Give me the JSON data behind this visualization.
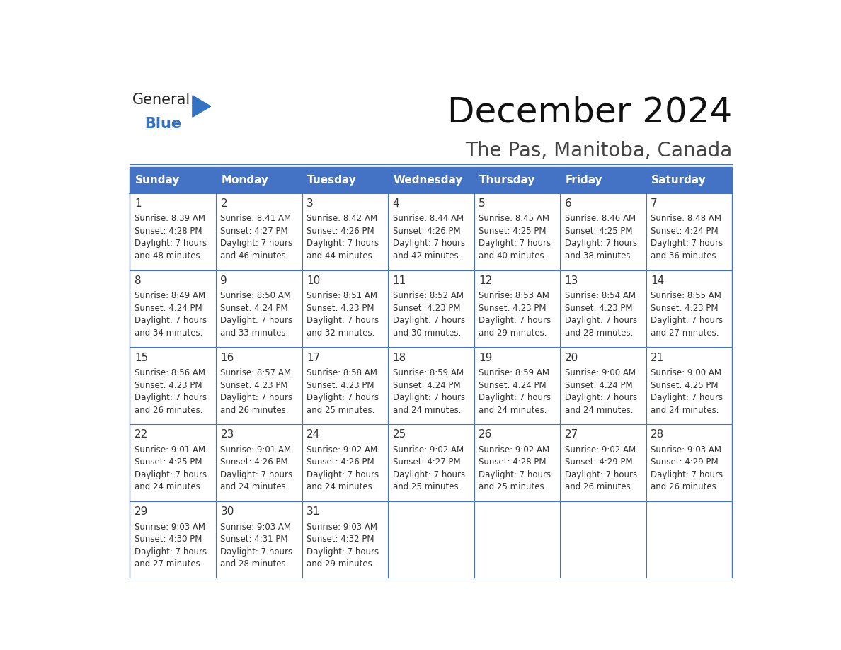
{
  "title": "December 2024",
  "subtitle": "The Pas, Manitoba, Canada",
  "header_bg_color": "#4472C4",
  "header_text_color": "#FFFFFF",
  "header_font_size": 11,
  "day_names": [
    "Sunday",
    "Monday",
    "Tuesday",
    "Wednesday",
    "Thursday",
    "Friday",
    "Saturday"
  ],
  "title_font_size": 36,
  "subtitle_font_size": 20,
  "cell_text_color": "#333333",
  "number_font_size": 11,
  "info_font_size": 8.5,
  "logo_general_color": "#222222",
  "logo_blue_color": "#3472C4",
  "weeks": [
    [
      {
        "day": 1,
        "info": "Sunrise: 8:39 AM\nSunset: 4:28 PM\nDaylight: 7 hours\nand 48 minutes."
      },
      {
        "day": 2,
        "info": "Sunrise: 8:41 AM\nSunset: 4:27 PM\nDaylight: 7 hours\nand 46 minutes."
      },
      {
        "day": 3,
        "info": "Sunrise: 8:42 AM\nSunset: 4:26 PM\nDaylight: 7 hours\nand 44 minutes."
      },
      {
        "day": 4,
        "info": "Sunrise: 8:44 AM\nSunset: 4:26 PM\nDaylight: 7 hours\nand 42 minutes."
      },
      {
        "day": 5,
        "info": "Sunrise: 8:45 AM\nSunset: 4:25 PM\nDaylight: 7 hours\nand 40 minutes."
      },
      {
        "day": 6,
        "info": "Sunrise: 8:46 AM\nSunset: 4:25 PM\nDaylight: 7 hours\nand 38 minutes."
      },
      {
        "day": 7,
        "info": "Sunrise: 8:48 AM\nSunset: 4:24 PM\nDaylight: 7 hours\nand 36 minutes."
      }
    ],
    [
      {
        "day": 8,
        "info": "Sunrise: 8:49 AM\nSunset: 4:24 PM\nDaylight: 7 hours\nand 34 minutes."
      },
      {
        "day": 9,
        "info": "Sunrise: 8:50 AM\nSunset: 4:24 PM\nDaylight: 7 hours\nand 33 minutes."
      },
      {
        "day": 10,
        "info": "Sunrise: 8:51 AM\nSunset: 4:23 PM\nDaylight: 7 hours\nand 32 minutes."
      },
      {
        "day": 11,
        "info": "Sunrise: 8:52 AM\nSunset: 4:23 PM\nDaylight: 7 hours\nand 30 minutes."
      },
      {
        "day": 12,
        "info": "Sunrise: 8:53 AM\nSunset: 4:23 PM\nDaylight: 7 hours\nand 29 minutes."
      },
      {
        "day": 13,
        "info": "Sunrise: 8:54 AM\nSunset: 4:23 PM\nDaylight: 7 hours\nand 28 minutes."
      },
      {
        "day": 14,
        "info": "Sunrise: 8:55 AM\nSunset: 4:23 PM\nDaylight: 7 hours\nand 27 minutes."
      }
    ],
    [
      {
        "day": 15,
        "info": "Sunrise: 8:56 AM\nSunset: 4:23 PM\nDaylight: 7 hours\nand 26 minutes."
      },
      {
        "day": 16,
        "info": "Sunrise: 8:57 AM\nSunset: 4:23 PM\nDaylight: 7 hours\nand 26 minutes."
      },
      {
        "day": 17,
        "info": "Sunrise: 8:58 AM\nSunset: 4:23 PM\nDaylight: 7 hours\nand 25 minutes."
      },
      {
        "day": 18,
        "info": "Sunrise: 8:59 AM\nSunset: 4:24 PM\nDaylight: 7 hours\nand 24 minutes."
      },
      {
        "day": 19,
        "info": "Sunrise: 8:59 AM\nSunset: 4:24 PM\nDaylight: 7 hours\nand 24 minutes."
      },
      {
        "day": 20,
        "info": "Sunrise: 9:00 AM\nSunset: 4:24 PM\nDaylight: 7 hours\nand 24 minutes."
      },
      {
        "day": 21,
        "info": "Sunrise: 9:00 AM\nSunset: 4:25 PM\nDaylight: 7 hours\nand 24 minutes."
      }
    ],
    [
      {
        "day": 22,
        "info": "Sunrise: 9:01 AM\nSunset: 4:25 PM\nDaylight: 7 hours\nand 24 minutes."
      },
      {
        "day": 23,
        "info": "Sunrise: 9:01 AM\nSunset: 4:26 PM\nDaylight: 7 hours\nand 24 minutes."
      },
      {
        "day": 24,
        "info": "Sunrise: 9:02 AM\nSunset: 4:26 PM\nDaylight: 7 hours\nand 24 minutes."
      },
      {
        "day": 25,
        "info": "Sunrise: 9:02 AM\nSunset: 4:27 PM\nDaylight: 7 hours\nand 25 minutes."
      },
      {
        "day": 26,
        "info": "Sunrise: 9:02 AM\nSunset: 4:28 PM\nDaylight: 7 hours\nand 25 minutes."
      },
      {
        "day": 27,
        "info": "Sunrise: 9:02 AM\nSunset: 4:29 PM\nDaylight: 7 hours\nand 26 minutes."
      },
      {
        "day": 28,
        "info": "Sunrise: 9:03 AM\nSunset: 4:29 PM\nDaylight: 7 hours\nand 26 minutes."
      }
    ],
    [
      {
        "day": 29,
        "info": "Sunrise: 9:03 AM\nSunset: 4:30 PM\nDaylight: 7 hours\nand 27 minutes."
      },
      {
        "day": 30,
        "info": "Sunrise: 9:03 AM\nSunset: 4:31 PM\nDaylight: 7 hours\nand 28 minutes."
      },
      {
        "day": 31,
        "info": "Sunrise: 9:03 AM\nSunset: 4:32 PM\nDaylight: 7 hours\nand 29 minutes."
      },
      null,
      null,
      null,
      null
    ]
  ],
  "grid_line_color": "#4472C4",
  "cell_bg_color": "#FFFFFF"
}
